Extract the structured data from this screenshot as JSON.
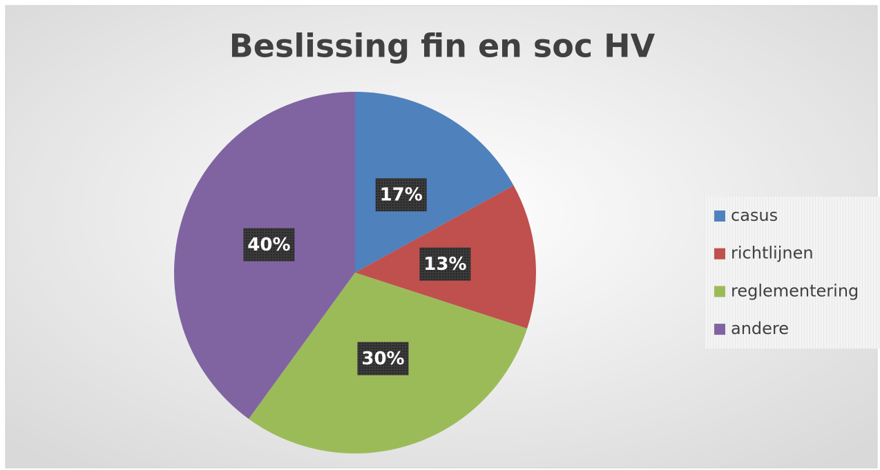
{
  "chart_data": {
    "type": "pie",
    "title": "Beslissing fin en soc HV",
    "categories": [
      "casus",
      "richtlijnen",
      "reglementering",
      "andere"
    ],
    "values": [
      17,
      13,
      30,
      40
    ],
    "value_labels": [
      "17%",
      "13%",
      "30%",
      "40%"
    ],
    "colors": [
      "#4f81bd",
      "#c0504d",
      "#9bbb59",
      "#8064a2"
    ],
    "legend": "right"
  }
}
